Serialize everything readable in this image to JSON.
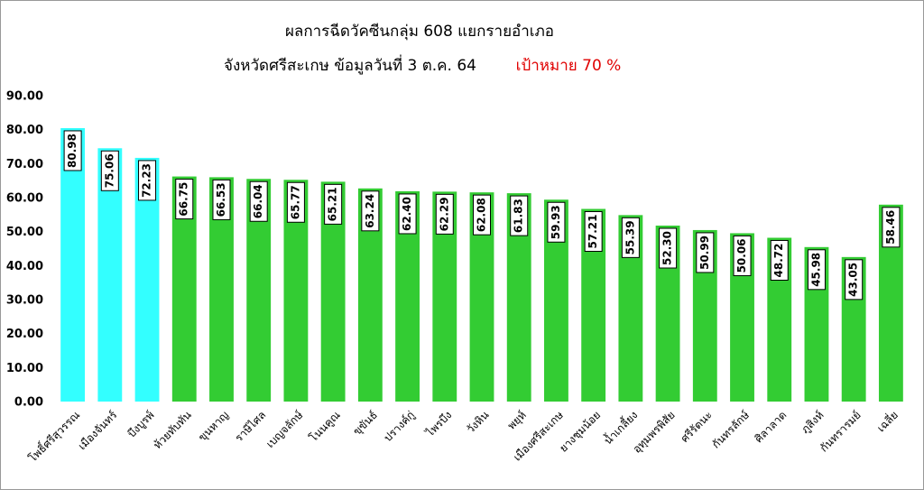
{
  "chart_data": {
    "type": "bar",
    "title": "ผลการฉีดวัคซีนกลุ่ม 608 แยกรายอำเภอ",
    "subtitle": "จังหวัดศรีสะเกษ  ข้อมูลวันที่ 3 ต.ค. 64",
    "annotation": "เป้าหมาย 70 %",
    "categories": [
      "โพธิ์ศรีสุวรรณ",
      "เมืองจันทร์",
      "บึงบูรพ์",
      "ห้วยทับทัน",
      "ขุนหาญ",
      "ราษีไศล",
      "เบญจลักษ์",
      "โนนคูณ",
      "ขุขันธ์",
      "ปรางค์กู่",
      "ไพรบึง",
      "วังหิน",
      "พยุห์",
      "เมืองศรีสะเกษ",
      "ยางชุมน้อย",
      "น้ำเกลี้ยง",
      "อุทุมพรพิสัย",
      "ศรีรัตนะ",
      "กันทรลักษ์",
      "ศิลาลาด",
      "ภูสิงห์",
      "กันทรารมย์",
      "เฉลี่ย"
    ],
    "values": [
      80.98,
      75.06,
      72.23,
      66.75,
      66.53,
      66.04,
      65.77,
      65.21,
      63.24,
      62.4,
      62.29,
      62.08,
      61.83,
      59.93,
      57.21,
      55.39,
      52.3,
      50.99,
      50.06,
      48.72,
      45.98,
      43.05,
      58.46
    ],
    "value_labels": [
      "80.98",
      "75.06",
      "72.23",
      "66.75",
      "66.53",
      "66.04",
      "65.77",
      "65.21",
      "63.24",
      "62.40",
      "62.29",
      "62.08",
      "61.83",
      "59.93",
      "57.21",
      "55.39",
      "52.30",
      "50.99",
      "50.06",
      "48.72",
      "45.98",
      "43.05",
      "58.46"
    ],
    "colors": [
      "#33ffff",
      "#33ffff",
      "#33ffff",
      "#33cc33",
      "#33cc33",
      "#33cc33",
      "#33cc33",
      "#33cc33",
      "#33cc33",
      "#33cc33",
      "#33cc33",
      "#33cc33",
      "#33cc33",
      "#33cc33",
      "#33cc33",
      "#33cc33",
      "#33cc33",
      "#33cc33",
      "#33cc33",
      "#33cc33",
      "#33cc33",
      "#33cc33",
      "#33cc33"
    ],
    "ylim": [
      0,
      90
    ],
    "yticks": [
      {
        "value": 0,
        "label": "0.00"
      },
      {
        "value": 10,
        "label": "10.00"
      },
      {
        "value": 20,
        "label": "20.00"
      },
      {
        "value": 30,
        "label": "30.00"
      },
      {
        "value": 40,
        "label": "40.00"
      },
      {
        "value": 50,
        "label": "50.00"
      },
      {
        "value": 60,
        "label": "60.00"
      },
      {
        "value": 70,
        "label": "70.00"
      },
      {
        "value": 80,
        "label": "80.00"
      },
      {
        "value": 90,
        "label": "90.00"
      }
    ],
    "grid": false
  }
}
